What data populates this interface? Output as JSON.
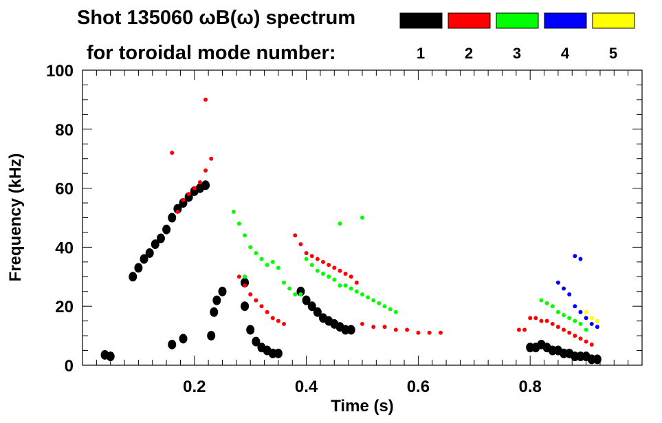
{
  "chart_data": {
    "type": "scatter",
    "title_line1": "Shot 135060 ωB(ω) spectrum",
    "title_line2": "for toroidal mode number:",
    "xlabel": "Time (s)",
    "ylabel": "Frequency (kHz)",
    "xlim": [
      0.0,
      1.0
    ],
    "ylim": [
      0,
      100
    ],
    "x_ticks": [
      0.2,
      0.4,
      0.6,
      0.8
    ],
    "x_tick_labels": [
      "0.2",
      "0.4",
      "0.6",
      "0.8"
    ],
    "y_ticks": [
      0,
      20,
      40,
      60,
      80,
      100
    ],
    "y_tick_labels": [
      "0",
      "20",
      "40",
      "60",
      "80",
      "100"
    ],
    "grid": false,
    "legend_position": "top-right",
    "legend": [
      {
        "n": "1",
        "color": "#000000"
      },
      {
        "n": "2",
        "color": "#ff0000"
      },
      {
        "n": "3",
        "color": "#00ff00"
      },
      {
        "n": "4",
        "color": "#0000ff"
      },
      {
        "n": "5",
        "color": "#ffff00"
      }
    ],
    "series": [
      {
        "mode": "1",
        "color": "#000000",
        "points": [
          [
            0.04,
            3.5
          ],
          [
            0.05,
            3
          ],
          [
            0.09,
            30
          ],
          [
            0.1,
            33
          ],
          [
            0.11,
            36
          ],
          [
            0.12,
            38
          ],
          [
            0.13,
            41
          ],
          [
            0.14,
            43
          ],
          [
            0.15,
            46
          ],
          [
            0.16,
            50
          ],
          [
            0.17,
            53
          ],
          [
            0.18,
            55
          ],
          [
            0.19,
            57
          ],
          [
            0.2,
            59
          ],
          [
            0.21,
            60
          ],
          [
            0.22,
            61
          ],
          [
            0.23,
            10
          ],
          [
            0.235,
            18
          ],
          [
            0.24,
            22
          ],
          [
            0.25,
            25
          ],
          [
            0.16,
            7
          ],
          [
            0.18,
            9
          ],
          [
            0.29,
            28
          ],
          [
            0.29,
            20
          ],
          [
            0.3,
            12
          ],
          [
            0.31,
            8
          ],
          [
            0.32,
            6
          ],
          [
            0.33,
            5
          ],
          [
            0.34,
            4
          ],
          [
            0.35,
            4
          ],
          [
            0.39,
            25
          ],
          [
            0.4,
            22
          ],
          [
            0.41,
            20
          ],
          [
            0.42,
            18
          ],
          [
            0.43,
            16
          ],
          [
            0.44,
            15
          ],
          [
            0.45,
            14
          ],
          [
            0.46,
            13
          ],
          [
            0.47,
            12
          ],
          [
            0.48,
            12
          ],
          [
            0.8,
            6
          ],
          [
            0.81,
            6
          ],
          [
            0.82,
            7
          ],
          [
            0.83,
            6
          ],
          [
            0.84,
            5
          ],
          [
            0.85,
            5
          ],
          [
            0.86,
            4
          ],
          [
            0.87,
            4
          ],
          [
            0.88,
            3
          ],
          [
            0.89,
            3
          ],
          [
            0.9,
            3
          ],
          [
            0.91,
            2
          ],
          [
            0.92,
            2
          ]
        ]
      },
      {
        "mode": "2",
        "color": "#ff0000",
        "points": [
          [
            0.17,
            52
          ],
          [
            0.18,
            56
          ],
          [
            0.19,
            58
          ],
          [
            0.2,
            60
          ],
          [
            0.21,
            62
          ],
          [
            0.22,
            66
          ],
          [
            0.23,
            70
          ],
          [
            0.22,
            90
          ],
          [
            0.16,
            72
          ],
          [
            0.28,
            30
          ],
          [
            0.29,
            27
          ],
          [
            0.3,
            24
          ],
          [
            0.31,
            22
          ],
          [
            0.32,
            20
          ],
          [
            0.33,
            18
          ],
          [
            0.34,
            16
          ],
          [
            0.35,
            15
          ],
          [
            0.36,
            14
          ],
          [
            0.38,
            44
          ],
          [
            0.39,
            41
          ],
          [
            0.4,
            38
          ],
          [
            0.41,
            37
          ],
          [
            0.42,
            36
          ],
          [
            0.43,
            35
          ],
          [
            0.44,
            34
          ],
          [
            0.45,
            33
          ],
          [
            0.46,
            32
          ],
          [
            0.47,
            31
          ],
          [
            0.48,
            30
          ],
          [
            0.49,
            28
          ],
          [
            0.5,
            14
          ],
          [
            0.52,
            13
          ],
          [
            0.54,
            13
          ],
          [
            0.56,
            12
          ],
          [
            0.58,
            12
          ],
          [
            0.6,
            11
          ],
          [
            0.62,
            11
          ],
          [
            0.64,
            11
          ],
          [
            0.78,
            12
          ],
          [
            0.79,
            12
          ],
          [
            0.8,
            16
          ],
          [
            0.81,
            16
          ],
          [
            0.82,
            15
          ],
          [
            0.83,
            15
          ],
          [
            0.84,
            14
          ],
          [
            0.85,
            13
          ],
          [
            0.86,
            12
          ],
          [
            0.87,
            11
          ],
          [
            0.88,
            10
          ],
          [
            0.89,
            9
          ],
          [
            0.9,
            8
          ],
          [
            0.91,
            7
          ]
        ]
      },
      {
        "mode": "3",
        "color": "#00ff00",
        "points": [
          [
            0.27,
            52
          ],
          [
            0.28,
            48
          ],
          [
            0.29,
            44
          ],
          [
            0.3,
            40
          ],
          [
            0.31,
            38
          ],
          [
            0.32,
            36
          ],
          [
            0.33,
            34
          ],
          [
            0.29,
            30
          ],
          [
            0.34,
            35
          ],
          [
            0.35,
            33
          ],
          [
            0.36,
            28
          ],
          [
            0.37,
            26
          ],
          [
            0.38,
            24
          ],
          [
            0.39,
            24
          ],
          [
            0.4,
            36
          ],
          [
            0.41,
            34
          ],
          [
            0.42,
            32
          ],
          [
            0.43,
            31
          ],
          [
            0.44,
            30
          ],
          [
            0.45,
            29
          ],
          [
            0.46,
            27
          ],
          [
            0.47,
            27
          ],
          [
            0.48,
            26
          ],
          [
            0.49,
            25
          ],
          [
            0.5,
            24
          ],
          [
            0.51,
            23
          ],
          [
            0.52,
            22
          ],
          [
            0.53,
            21
          ],
          [
            0.54,
            20
          ],
          [
            0.55,
            19
          ],
          [
            0.56,
            18
          ],
          [
            0.5,
            50
          ],
          [
            0.46,
            48
          ],
          [
            0.82,
            22
          ],
          [
            0.83,
            21
          ],
          [
            0.84,
            20
          ],
          [
            0.85,
            18
          ],
          [
            0.86,
            17
          ],
          [
            0.87,
            16
          ],
          [
            0.88,
            15
          ],
          [
            0.89,
            14
          ],
          [
            0.9,
            12
          ]
        ]
      },
      {
        "mode": "4",
        "color": "#0000ff",
        "points": [
          [
            0.85,
            28
          ],
          [
            0.86,
            26
          ],
          [
            0.87,
            24
          ],
          [
            0.88,
            20
          ],
          [
            0.89,
            18
          ],
          [
            0.9,
            16
          ],
          [
            0.88,
            37
          ],
          [
            0.89,
            36
          ],
          [
            0.91,
            14
          ],
          [
            0.92,
            13
          ]
        ]
      },
      {
        "mode": "5",
        "color": "#ffff00",
        "points": [
          [
            0.9,
            18
          ],
          [
            0.91,
            16
          ],
          [
            0.92,
            15
          ]
        ]
      }
    ]
  }
}
